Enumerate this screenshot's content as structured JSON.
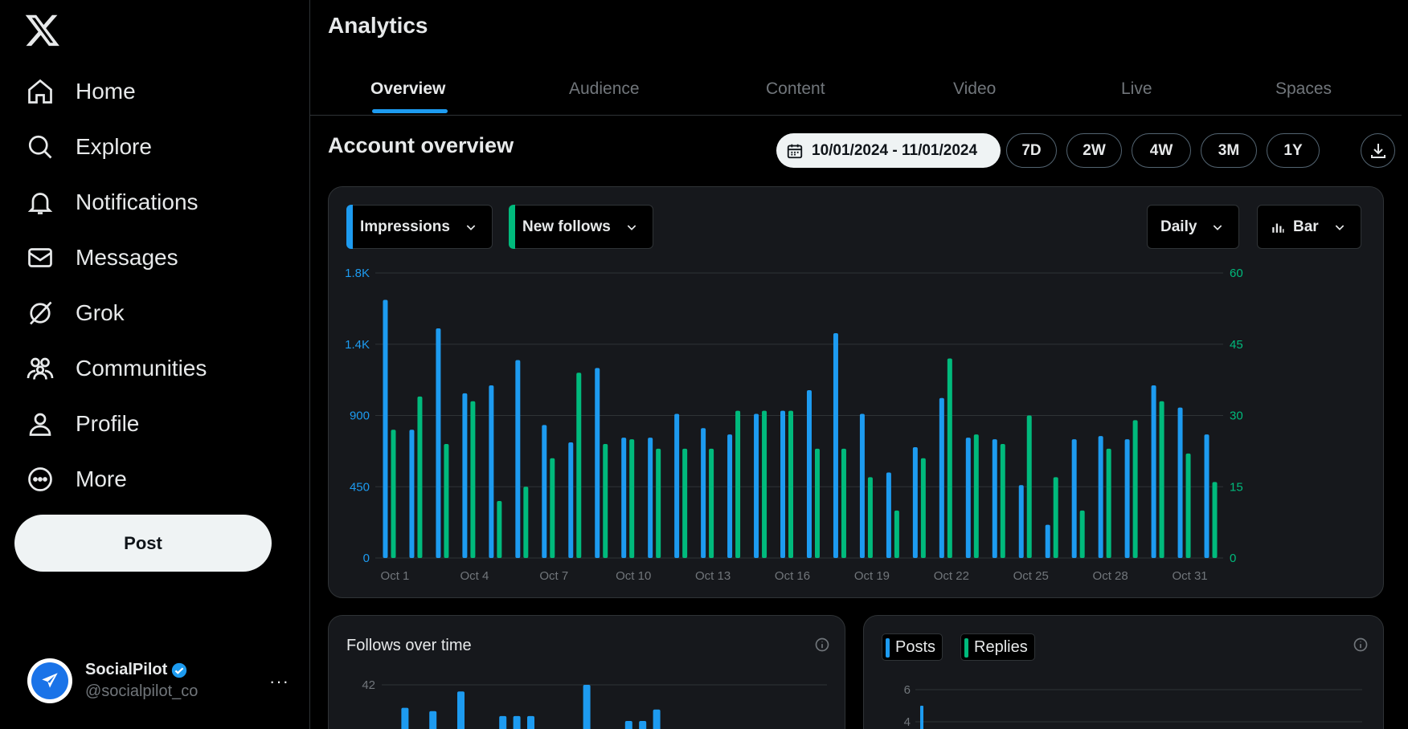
{
  "sidebar": {
    "nav": [
      {
        "label": "Home",
        "icon": "home-icon"
      },
      {
        "label": "Explore",
        "icon": "search-icon"
      },
      {
        "label": "Notifications",
        "icon": "bell-icon"
      },
      {
        "label": "Messages",
        "icon": "mail-icon"
      },
      {
        "label": "Grok",
        "icon": "grok-icon"
      },
      {
        "label": "Communities",
        "icon": "communities-icon"
      },
      {
        "label": "Profile",
        "icon": "person-icon"
      },
      {
        "label": "More",
        "icon": "more-circle-icon"
      }
    ],
    "post_label": "Post",
    "account": {
      "name": "SocialPilot",
      "handle": "@socialpilot_co",
      "more": "···"
    }
  },
  "header": {
    "title": "Analytics"
  },
  "tabs": [
    {
      "label": "Overview",
      "active": true
    },
    {
      "label": "Audience"
    },
    {
      "label": "Content"
    },
    {
      "label": "Video"
    },
    {
      "label": "Live"
    },
    {
      "label": "Spaces"
    }
  ],
  "overview": {
    "title": "Account overview",
    "date_range": "10/01/2024 - 11/01/2024",
    "ranges": [
      "7D",
      "2W",
      "4W",
      "3M",
      "1Y"
    ]
  },
  "controls": {
    "metric1": "Impressions",
    "metric2": "New follows",
    "interval": "Daily",
    "chart_type": "Bar"
  },
  "colors": {
    "impressions": "#1d9bf0",
    "new_follows": "#00ba7c",
    "accent": "#1d9bf0"
  },
  "chart_data": {
    "type": "bar",
    "x_tick_labels": [
      "Oct 1",
      "Oct 4",
      "Oct 7",
      "Oct 10",
      "Oct 13",
      "Oct 16",
      "Oct 19",
      "Oct 22",
      "Oct 25",
      "Oct 28",
      "Oct 31"
    ],
    "categories": [
      "Oct 1",
      "Oct 2",
      "Oct 3",
      "Oct 4",
      "Oct 5",
      "Oct 6",
      "Oct 7",
      "Oct 8",
      "Oct 9",
      "Oct 10",
      "Oct 11",
      "Oct 12",
      "Oct 13",
      "Oct 14",
      "Oct 15",
      "Oct 16",
      "Oct 17",
      "Oct 18",
      "Oct 19",
      "Oct 20",
      "Oct 21",
      "Oct 22",
      "Oct 23",
      "Oct 24",
      "Oct 25",
      "Oct 26",
      "Oct 27",
      "Oct 28",
      "Oct 29",
      "Oct 30",
      "Oct 31",
      "Nov 1"
    ],
    "left_axis": {
      "ticks": [
        "0",
        "450",
        "900",
        "1.4K",
        "1.8K"
      ],
      "max": 1800
    },
    "right_axis": {
      "ticks": [
        "0",
        "15",
        "30",
        "45",
        "60"
      ],
      "max": 60
    },
    "series": [
      {
        "name": "Impressions",
        "axis": "left",
        "values": [
          1630,
          810,
          1450,
          1040,
          1090,
          1250,
          840,
          730,
          1200,
          760,
          760,
          910,
          820,
          780,
          910,
          930,
          1060,
          1420,
          910,
          540,
          700,
          1010,
          760,
          750,
          460,
          210,
          750,
          770,
          750,
          1090,
          950,
          780
        ]
      },
      {
        "name": "New follows",
        "axis": "right",
        "values": [
          27,
          34,
          24,
          33,
          12,
          15,
          21,
          39,
          24,
          25,
          23,
          23,
          23,
          31,
          31,
          31,
          23,
          23,
          17,
          10,
          21,
          42,
          26,
          24,
          30,
          17,
          10,
          23,
          29,
          33,
          22,
          16
        ]
      }
    ]
  },
  "follows_card": {
    "title": "Follows over time",
    "y_top_tick": "42",
    "values": [
      12,
      28,
      8,
      26,
      2,
      38,
      6,
      9,
      23,
      23,
      23,
      7,
      7,
      2,
      46,
      7,
      7,
      20,
      20,
      27,
      7
    ]
  },
  "posts_card": {
    "legend": [
      "Posts",
      "Replies"
    ],
    "y_ticks": [
      "6",
      "4"
    ]
  }
}
